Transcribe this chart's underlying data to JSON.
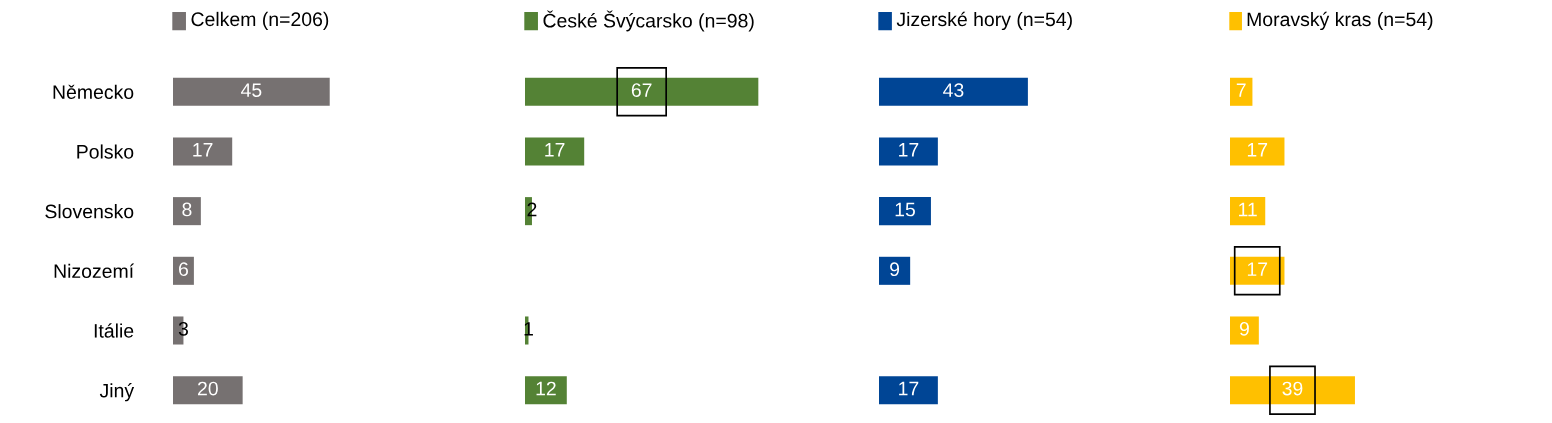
{
  "chart_data": [
    {
      "type": "bar",
      "orientation": "horizontal",
      "categories": [
        "Německo",
        "Polsko",
        "Slovensko",
        "Nizozemí",
        "Itálie",
        "Jiný"
      ],
      "series": [
        {
          "name": "Celkem (n=206)",
          "color": "#767171",
          "values": [
            45,
            17,
            8,
            6,
            3,
            20
          ]
        }
      ],
      "data_labels": true,
      "legend": "top",
      "tick_labels": "y"
    },
    {
      "type": "bar",
      "orientation": "horizontal",
      "categories": [
        null,
        null,
        null,
        null,
        null,
        null
      ],
      "series": [
        {
          "name": "České Švýcarsko (n=98)",
          "color": "#548235",
          "values": [
            67,
            17,
            2,
            null,
            1,
            12
          ]
        }
      ],
      "data_labels": true,
      "legend": "top",
      "tick_labels": false
    },
    {
      "type": "bar",
      "orientation": "horizontal",
      "categories": [
        null,
        null,
        null,
        null,
        null,
        null
      ],
      "series": [
        {
          "name": "Jizerské hory (n=54)",
          "color": "#004595",
          "values": [
            43,
            17,
            15,
            9,
            null,
            17
          ]
        }
      ],
      "data_labels": true,
      "legend": "top",
      "tick_labels": false
    },
    {
      "type": "bar",
      "orientation": "horizontal",
      "categories": [
        null,
        null,
        null,
        null,
        null,
        null
      ],
      "series": [
        {
          "name": "Moravský kras (n=54)",
          "color": "#ffc000",
          "values": [
            7,
            17,
            11,
            17,
            9,
            39
          ]
        }
      ],
      "data_labels": true,
      "legend": "top",
      "tick_labels": false
    }
  ]
}
